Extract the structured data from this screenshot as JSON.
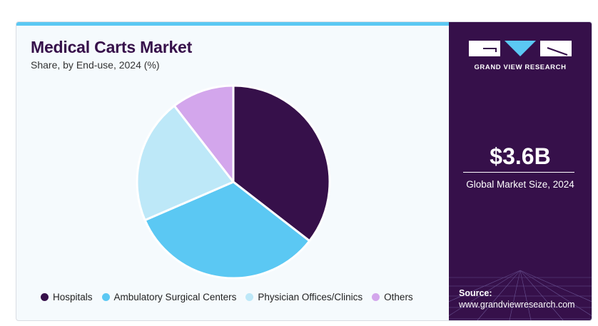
{
  "header": {
    "title": "Medical Carts Market",
    "subtitle": "Share, by End-use, 2024 (%)"
  },
  "chart_data": {
    "type": "pie",
    "categories": [
      "Hospitals",
      "Ambulatory Surgical Centers",
      "Physician Offices/Clinics",
      "Others"
    ],
    "values": [
      35.5,
      33.0,
      21.0,
      10.5
    ],
    "colors": [
      "#36104a",
      "#5bc8f3",
      "#bde8f8",
      "#d3a6ec"
    ],
    "start_angle_deg": 0,
    "direction": "clockwise",
    "legend_position": "bottom"
  },
  "legend": {
    "items": [
      {
        "label": "Hospitals",
        "color": "#36104a"
      },
      {
        "label": "Ambulatory Surgical Centers",
        "color": "#5bc8f3"
      },
      {
        "label": "Physician Offices/Clinics",
        "color": "#bde8f8"
      },
      {
        "label": "Others",
        "color": "#d3a6ec"
      }
    ]
  },
  "sidebar": {
    "logo_text": "GRAND VIEW RESEARCH",
    "market_size_value": "$3.6B",
    "market_size_label": "Global Market Size, 2024",
    "source_label": "Source:",
    "source_url": "www.grandviewresearch.com"
  },
  "colors": {
    "brand_purple": "#36104a",
    "accent_blue": "#5bc8f3"
  }
}
